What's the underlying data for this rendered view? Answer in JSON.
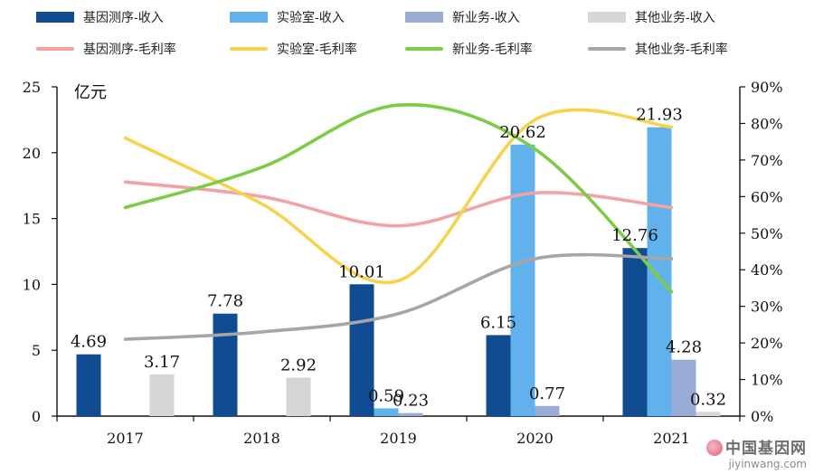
{
  "chart_data": {
    "type": "bar",
    "categories": [
      "2017",
      "2018",
      "2019",
      "2020",
      "2021"
    ],
    "y_left": {
      "unit": "亿元",
      "ylim": [
        0,
        25
      ],
      "ticks": [
        0,
        5,
        10,
        15,
        20,
        25
      ]
    },
    "y_right": {
      "ylim": [
        0,
        90
      ],
      "ticks": [
        "0%",
        "10%",
        "20%",
        "30%",
        "40%",
        "50%",
        "60%",
        "70%",
        "80%",
        "90%"
      ]
    },
    "bar_series": [
      {
        "name": "基因测序-收入",
        "color": "#0f4c92",
        "values": [
          4.69,
          7.78,
          10.01,
          6.15,
          12.76
        ],
        "labels": [
          "4.69",
          "7.78",
          "10.01",
          "6.15",
          "12.76"
        ]
      },
      {
        "name": "实验室-收入",
        "color": "#61b2ec",
        "values": [
          null,
          null,
          0.59,
          20.62,
          21.93
        ],
        "labels": [
          null,
          null,
          "0.59",
          "20.62",
          "21.93"
        ]
      },
      {
        "name": "新业务-收入",
        "color": "#98acd6",
        "values": [
          null,
          null,
          0.23,
          0.77,
          4.28
        ],
        "labels": [
          null,
          null,
          "0.23",
          "0.77",
          "4.28"
        ]
      },
      {
        "name": "其他业务-收入",
        "color": "#d6d6d6",
        "values": [
          3.17,
          2.92,
          null,
          null,
          0.32
        ],
        "labels": [
          "3.17",
          "2.92",
          null,
          null,
          "0.32"
        ]
      }
    ],
    "line_series": [
      {
        "name": "基因测序-毛利率",
        "color": "#f2a3a3",
        "values": [
          64,
          60,
          52,
          61,
          57
        ]
      },
      {
        "name": "实验室-毛利率",
        "color": "#f6d24f",
        "values": [
          76,
          58,
          37,
          81,
          79
        ]
      },
      {
        "name": "新业务-毛利率",
        "color": "#7ccd45",
        "values": [
          57,
          68,
          85,
          73,
          34
        ]
      },
      {
        "name": "其他业务-毛利率",
        "color": "#a6a6a6",
        "values": [
          21,
          23,
          28,
          43,
          43
        ]
      }
    ]
  },
  "watermark": {
    "name": "中国基因网",
    "url": "jiyinwang.com"
  }
}
